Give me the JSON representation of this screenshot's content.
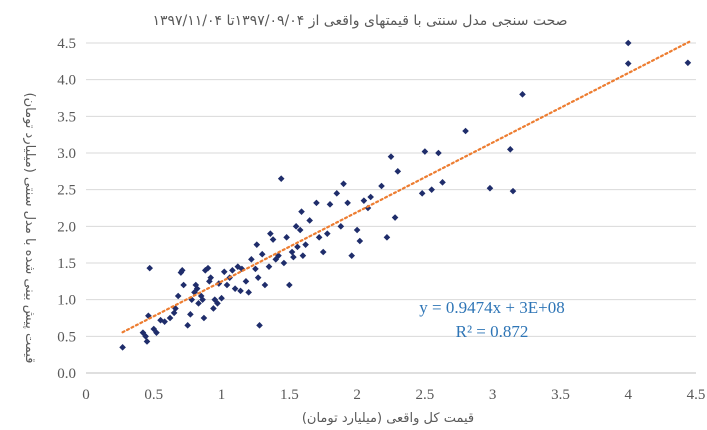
{
  "chart_data": {
    "type": "scatter",
    "title": "صحت سنجی مدل سنتی با قیمتهای واقعی از ۱۳۹۷/۰۹/۰۴تا ۱۳۹۷/۱۱/۰۴",
    "xlabel": "قیمت کل واقعی (میلیارد تومان)",
    "ylabel": "قیمت پیش بینی شده با مدل سنتی (میلیارد تومان)",
    "xlim": [
      0,
      4.5
    ],
    "ylim": [
      0,
      4.5
    ],
    "xticks": [
      "0",
      "0.5",
      "1",
      "1.5",
      "2",
      "2.5",
      "3",
      "3.5",
      "4",
      "4.5"
    ],
    "yticks": [
      "0.0",
      "0.5",
      "1.0",
      "1.5",
      "2.0",
      "2.5",
      "3.0",
      "3.5",
      "4.0",
      "4.5"
    ],
    "grid": "horizontal",
    "marker_color": "#1F2D6B",
    "trendline_color": "#ED7D31",
    "equation_color": "#2E75B6",
    "trendline": {
      "slope": 0.9474,
      "intercept": 0.3,
      "x_range": [
        0.27,
        4.45
      ]
    },
    "equation_text": "y = 0.9474x + 3E+08",
    "r2_text": "R² = 0.872",
    "points": [
      [
        0.27,
        0.35
      ],
      [
        0.42,
        0.55
      ],
      [
        0.44,
        0.5
      ],
      [
        0.45,
        0.43
      ],
      [
        0.46,
        0.78
      ],
      [
        0.47,
        1.43
      ],
      [
        0.5,
        0.6
      ],
      [
        0.52,
        0.55
      ],
      [
        0.55,
        0.72
      ],
      [
        0.58,
        0.7
      ],
      [
        0.62,
        0.75
      ],
      [
        0.65,
        0.82
      ],
      [
        0.66,
        0.88
      ],
      [
        0.68,
        1.05
      ],
      [
        0.7,
        1.37
      ],
      [
        0.71,
        1.4
      ],
      [
        0.72,
        1.2
      ],
      [
        0.75,
        0.65
      ],
      [
        0.77,
        0.8
      ],
      [
        0.78,
        1.0
      ],
      [
        0.8,
        1.1
      ],
      [
        0.81,
        1.2
      ],
      [
        0.82,
        1.15
      ],
      [
        0.83,
        0.95
      ],
      [
        0.85,
        1.05
      ],
      [
        0.86,
        1.0
      ],
      [
        0.87,
        0.75
      ],
      [
        0.88,
        1.4
      ],
      [
        0.9,
        1.43
      ],
      [
        0.91,
        1.25
      ],
      [
        0.92,
        1.3
      ],
      [
        0.94,
        0.88
      ],
      [
        0.95,
        1.0
      ],
      [
        0.97,
        0.95
      ],
      [
        0.98,
        1.22
      ],
      [
        1.0,
        1.02
      ],
      [
        1.02,
        1.38
      ],
      [
        1.04,
        1.2
      ],
      [
        1.06,
        1.3
      ],
      [
        1.08,
        1.4
      ],
      [
        1.1,
        1.15
      ],
      [
        1.12,
        1.45
      ],
      [
        1.14,
        1.12
      ],
      [
        1.15,
        1.42
      ],
      [
        1.18,
        1.25
      ],
      [
        1.2,
        1.1
      ],
      [
        1.22,
        1.55
      ],
      [
        1.25,
        1.42
      ],
      [
        1.26,
        1.75
      ],
      [
        1.27,
        1.3
      ],
      [
        1.28,
        0.65
      ],
      [
        1.3,
        1.62
      ],
      [
        1.32,
        1.2
      ],
      [
        1.35,
        1.45
      ],
      [
        1.36,
        1.9
      ],
      [
        1.38,
        1.82
      ],
      [
        1.4,
        1.55
      ],
      [
        1.42,
        1.6
      ],
      [
        1.44,
        2.65
      ],
      [
        1.46,
        1.5
      ],
      [
        1.48,
        1.85
      ],
      [
        1.5,
        1.2
      ],
      [
        1.52,
        1.65
      ],
      [
        1.53,
        1.58
      ],
      [
        1.55,
        2.0
      ],
      [
        1.56,
        1.72
      ],
      [
        1.58,
        1.95
      ],
      [
        1.59,
        2.2
      ],
      [
        1.6,
        1.6
      ],
      [
        1.62,
        1.75
      ],
      [
        1.65,
        2.08
      ],
      [
        1.7,
        2.32
      ],
      [
        1.72,
        1.85
      ],
      [
        1.75,
        1.65
      ],
      [
        1.78,
        1.9
      ],
      [
        1.8,
        2.3
      ],
      [
        1.85,
        2.45
      ],
      [
        1.88,
        2.0
      ],
      [
        1.9,
        2.58
      ],
      [
        1.93,
        2.32
      ],
      [
        1.96,
        1.6
      ],
      [
        2.0,
        1.95
      ],
      [
        2.02,
        1.8
      ],
      [
        2.05,
        2.35
      ],
      [
        2.08,
        2.25
      ],
      [
        2.1,
        2.4
      ],
      [
        2.18,
        2.55
      ],
      [
        2.22,
        1.85
      ],
      [
        2.25,
        2.95
      ],
      [
        2.28,
        2.12
      ],
      [
        2.3,
        2.75
      ],
      [
        2.48,
        2.45
      ],
      [
        2.5,
        3.02
      ],
      [
        2.55,
        2.5
      ],
      [
        2.6,
        3.0
      ],
      [
        2.63,
        2.6
      ],
      [
        2.8,
        3.3
      ],
      [
        2.98,
        2.52
      ],
      [
        3.13,
        3.05
      ],
      [
        3.15,
        2.48
      ],
      [
        3.22,
        3.8
      ],
      [
        4.0,
        4.22
      ],
      [
        4.0,
        4.5
      ],
      [
        4.44,
        4.23
      ]
    ]
  }
}
